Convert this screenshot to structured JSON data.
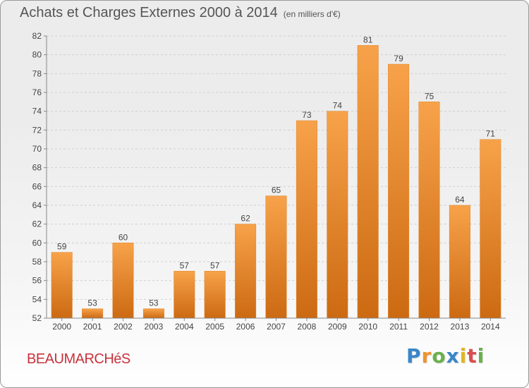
{
  "chart_data": {
    "type": "bar",
    "title": "Achats et Charges Externes 2000 à 2014",
    "subtitle": "(en milliers d'€)",
    "categories": [
      "2000",
      "2001",
      "2002",
      "2003",
      "2004",
      "2005",
      "2006",
      "2007",
      "2008",
      "2009",
      "2010",
      "2011",
      "2012",
      "2013",
      "2014"
    ],
    "values": [
      59,
      53,
      60,
      53,
      57,
      57,
      62,
      65,
      73,
      74,
      81,
      79,
      75,
      64,
      71
    ],
    "ylim": [
      52,
      82
    ],
    "yticks": [
      52,
      54,
      56,
      58,
      60,
      62,
      64,
      66,
      68,
      70,
      72,
      74,
      76,
      78,
      80,
      82
    ],
    "grid": true,
    "bar_color": "#f0922f",
    "bar_color_dark": "#cc6a12",
    "xlabel": "",
    "ylabel": ""
  },
  "place_name": "BEAUMARCHéS",
  "logo": {
    "text": "Proxiti",
    "letters": [
      "P",
      "r",
      "o",
      "x",
      "i",
      "t",
      "i"
    ],
    "colors": [
      "#3a86c8",
      "#f0922f",
      "#6ab04c",
      "#3a86c8",
      "#e0b820",
      "#d94f4f",
      "#6ab04c"
    ]
  }
}
